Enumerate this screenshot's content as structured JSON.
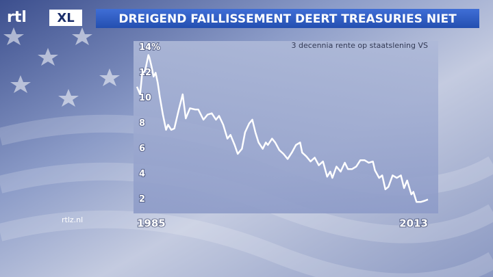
{
  "chart_data": {
    "type": "line",
    "title": "DREIGEND FAILLISSEMENT DEERT TREASURIES NIET",
    "subtitle": "3 decennia rente op staatslening VS",
    "x": [
      1985.0,
      1985.3,
      1985.5,
      1985.8,
      1986.1,
      1986.2,
      1986.4,
      1986.6,
      1986.8,
      1987.0,
      1987.2,
      1987.5,
      1987.8,
      1988.0,
      1988.3,
      1988.6,
      1989.0,
      1989.4,
      1989.7,
      1990.1,
      1990.6,
      1990.9,
      1991.4,
      1991.8,
      1992.2,
      1992.6,
      1992.9,
      1993.3,
      1993.7,
      1994.0,
      1994.4,
      1994.7,
      1995.1,
      1995.4,
      1995.8,
      1996.1,
      1996.4,
      1996.7,
      1997.1,
      1997.4,
      1997.6,
      1998.0,
      1998.3,
      1998.7,
      1999.1,
      1999.5,
      1999.9,
      2000.3,
      2000.7,
      2000.9,
      2001.3,
      2001.7,
      2002.1,
      2002.5,
      2002.9,
      2003.3,
      2003.6,
      2003.8,
      2004.2,
      2004.6,
      2005.0,
      2005.3,
      2005.7,
      2006.1,
      2006.5,
      2006.9,
      2007.3,
      2007.7,
      2007.9,
      2008.3,
      2008.6,
      2008.9,
      2009.2,
      2009.6,
      2010.0,
      2010.4,
      2010.7,
      2011.0,
      2011.4,
      2011.6,
      2011.9,
      2012.3,
      2012.7,
      2013.0
    ],
    "values": [
      10.9,
      10.3,
      11.9,
      12.2,
      13.4,
      13.2,
      12.5,
      11.7,
      12.0,
      11.2,
      10.1,
      8.7,
      7.5,
      7.9,
      7.5,
      7.6,
      9.0,
      10.3,
      8.4,
      9.2,
      9.1,
      9.1,
      8.3,
      8.7,
      8.8,
      8.3,
      8.6,
      7.9,
      6.8,
      7.1,
      6.3,
      5.6,
      6.0,
      7.3,
      8.0,
      8.3,
      7.3,
      6.5,
      6.0,
      6.5,
      6.3,
      6.8,
      6.5,
      5.9,
      5.6,
      5.2,
      5.7,
      6.3,
      6.5,
      5.7,
      5.4,
      5.0,
      5.3,
      4.7,
      5.0,
      3.8,
      4.2,
      3.7,
      4.6,
      4.2,
      4.9,
      4.4,
      4.4,
      4.6,
      5.1,
      5.1,
      4.9,
      5.0,
      4.3,
      3.7,
      3.9,
      2.8,
      3.0,
      3.9,
      3.7,
      3.9,
      2.9,
      3.5,
      2.4,
      2.6,
      1.8,
      1.8,
      1.9,
      2.0
    ],
    "color": "#ffffff",
    "xlim": [
      1985,
      2013
    ],
    "xticks": [
      1985,
      2013
    ],
    "ylim": [
      0.9,
      14.4
    ],
    "yticks": [
      2,
      4,
      6,
      8,
      10,
      12,
      {
        "value": 14,
        "label": "14%"
      }
    ],
    "grid": false
  },
  "branding": {
    "logo": "rtl",
    "logo_badge": "XL",
    "website": "rtlz.nl"
  }
}
